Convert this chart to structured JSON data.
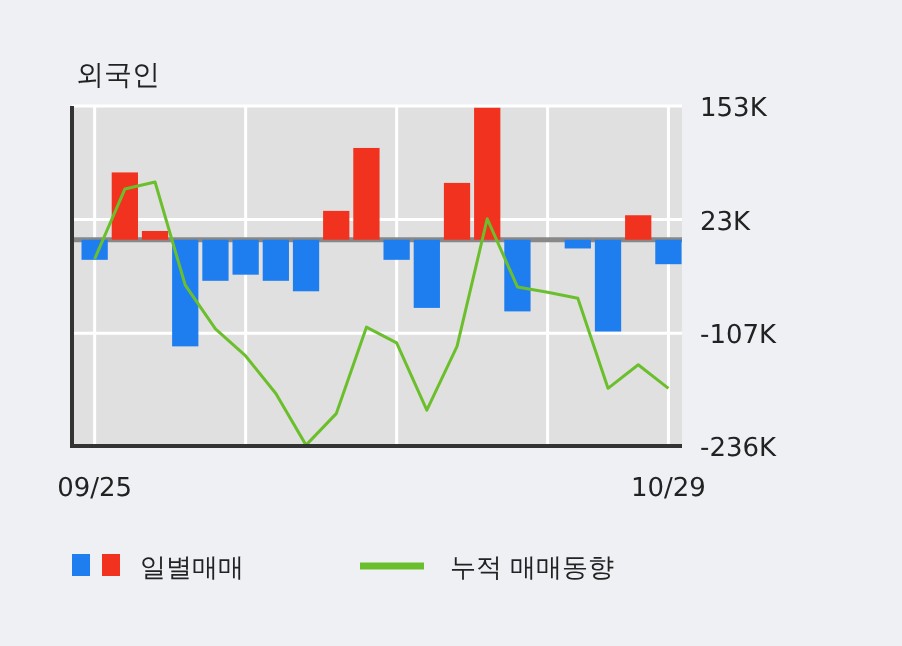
{
  "chart_data": {
    "type": "bar",
    "title": "외국인",
    "categories": [
      "09/25",
      null,
      null,
      null,
      null,
      null,
      null,
      null,
      null,
      null,
      null,
      null,
      null,
      null,
      null,
      null,
      null,
      null,
      null,
      "10/29"
    ],
    "series": [
      {
        "name": "일별매매",
        "colors": [
          "#1e7ef0",
          "#f0321e",
          "#f0321e",
          "#1e7ef0",
          "#1e7ef0",
          "#1e7ef0",
          "#1e7ef0",
          "#1e7ef0",
          "#f0321e",
          "#f0321e",
          "#1e7ef0",
          "#1e7ef0",
          "#f0321e",
          "#f0321e",
          "#1e7ef0",
          "#1e7ef0",
          "#1e7ef0",
          "#1e7ef0",
          "#f0321e",
          "#1e7ef0"
        ],
        "values": [
          -23,
          77,
          10,
          -122,
          -47,
          -40,
          -47,
          -59,
          33,
          105,
          -23,
          -78,
          65,
          151,
          -82,
          0,
          -10,
          -105,
          28,
          -28
        ]
      },
      {
        "name": "누적 매매동향",
        "type": "line",
        "color": "#6cbf2c",
        "values": [
          -22,
          58,
          66,
          -52,
          -102,
          -133,
          -176,
          -235,
          -199,
          -100,
          -118,
          -195,
          -122,
          24,
          -54,
          -60,
          -67,
          -170,
          -143,
          -170
        ]
      }
    ],
    "ylim": [
      -236,
      153
    ],
    "yticks": [
      {
        "value": 153,
        "label": "153K"
      },
      {
        "value": 23,
        "label": "23K"
      },
      {
        "value": -107,
        "label": "-107K"
      },
      {
        "value": -236,
        "label": "-236K"
      }
    ],
    "grid": true,
    "legend": "bottom",
    "line_style": "solid",
    "ref_lines": [
      {
        "axis": "y",
        "value": 0,
        "color": "#888888"
      }
    ]
  }
}
